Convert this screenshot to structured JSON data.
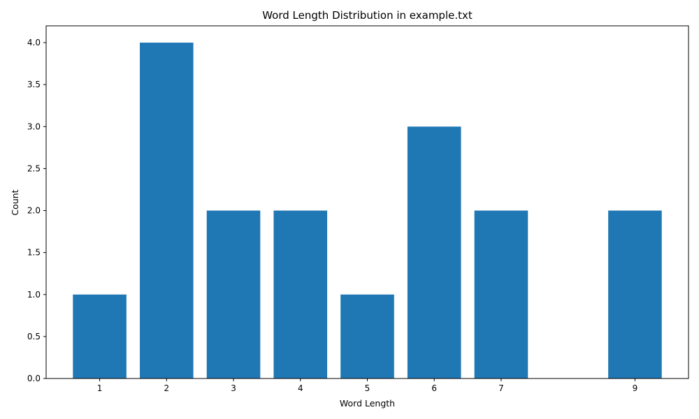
{
  "chart_data": {
    "type": "bar",
    "title": "Word Length Distribution in example.txt",
    "xlabel": "Word Length",
    "ylabel": "Count",
    "x": [
      1,
      2,
      3,
      4,
      5,
      6,
      7,
      9
    ],
    "values": [
      1,
      4,
      2,
      2,
      1,
      3,
      2,
      2
    ],
    "xticks": [
      "1",
      "2",
      "3",
      "4",
      "5",
      "6",
      "7",
      "9"
    ],
    "yticks": [
      "0.0",
      "0.5",
      "1.0",
      "1.5",
      "2.0",
      "2.5",
      "3.0",
      "3.5",
      "4.0"
    ],
    "ytick_values": [
      0,
      0.5,
      1,
      1.5,
      2,
      2.5,
      3,
      3.5,
      4
    ],
    "xlim": [
      0.2,
      9.8
    ],
    "ylim": [
      0,
      4.2
    ],
    "bar_color": "#1f77b4",
    "grid": false,
    "legend": "none"
  }
}
